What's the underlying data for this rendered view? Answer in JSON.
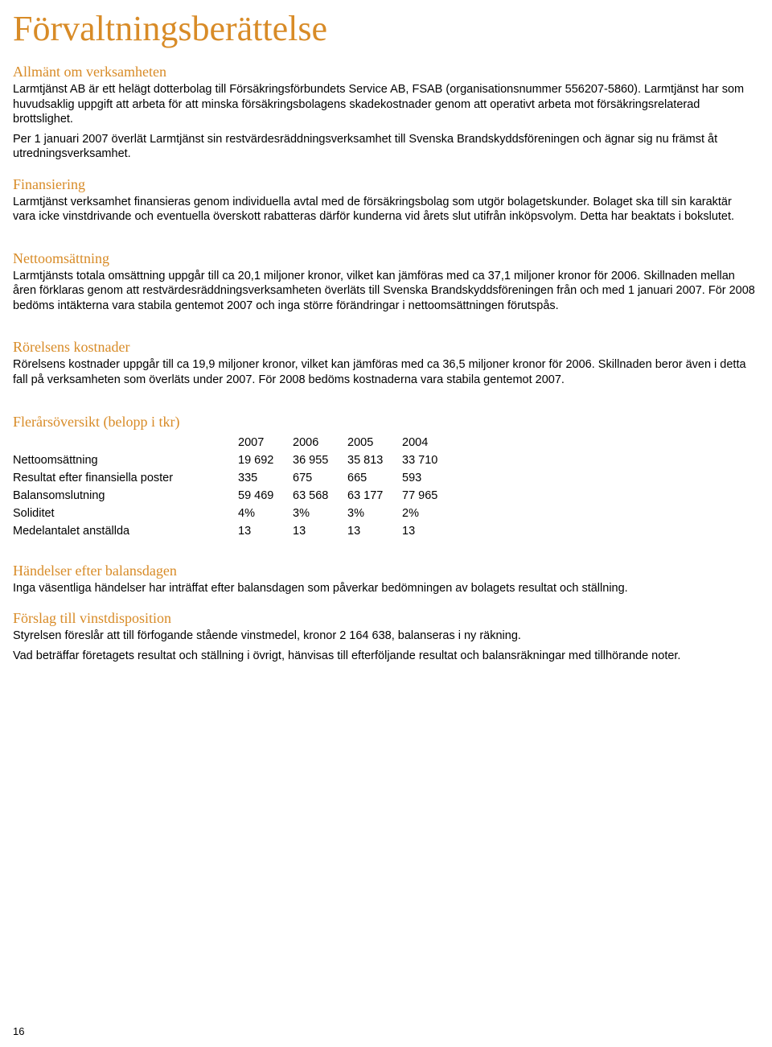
{
  "colors": {
    "accent": "#d88b27",
    "text": "#000000",
    "background": "#ffffff"
  },
  "title": "Förvaltningsberättelse",
  "sections": {
    "allmant": {
      "heading": "Allmänt om verksamheten",
      "p1": "Larmtjänst AB är ett helägt dotterbolag till Försäkringsförbundets Service AB, FSAB (organisationsnummer 556207-5860). Larmtjänst har som huvudsaklig uppgift att arbeta för att minska försäkringsbolagens skadekostnader genom att operativt arbeta mot försäkringsrelaterad brottslighet.",
      "p2": "Per 1 januari 2007 överlät Larmtjänst sin restvärdesräddningsverksamhet till Svenska Brandskyddsföreningen och ägnar sig nu främst åt utredningsverksamhet."
    },
    "finansiering": {
      "heading": "Finansiering",
      "p1": "Larmtjänst verksamhet finansieras genom individuella avtal med de försäkringsbolag som utgör bolagetskunder. Bolaget ska till sin karaktär vara icke vinstdrivande och eventuella överskott rabatteras därför kunderna vid årets slut utifrån inköpsvolym. Detta har beaktats i bokslutet."
    },
    "nettoomsattning": {
      "heading": "Nettoomsättning",
      "p1": "Larmtjänsts totala omsättning uppgår till ca 20,1 miljoner kronor, vilket kan jämföras med ca 37,1 miljoner kronor för 2006. Skillnaden mellan åren förklaras genom att restvärdesräddningsverksamheten överläts till Svenska Brandskyddsföreningen från och med 1 januari 2007. För 2008 bedöms intäkterna vara stabila gentemot 2007 och inga större förändringar i nettoomsättningen förutspås."
    },
    "rorelsens": {
      "heading": "Rörelsens kostnader",
      "p1": "Rörelsens kostnader uppgår till ca 19,9 miljoner kronor, vilket kan jämföras med ca 36,5 miljoner kronor för 2006. Skillnaden beror även i detta fall på verksamheten som överläts under 2007. För 2008 bedöms kostnaderna vara stabila gentemot 2007."
    },
    "flerars": {
      "heading": "Flerårsöversikt (belopp i tkr)",
      "table": {
        "type": "table",
        "columns": [
          "",
          "2007",
          "2006",
          "2005",
          "2004"
        ],
        "rows": [
          [
            "Nettoomsättning",
            "19 692",
            "36 955",
            "35 813",
            "33 710"
          ],
          [
            "Resultat efter finansiella poster",
            "335",
            "675",
            "665",
            "593"
          ],
          [
            "Balansomslutning",
            "59 469",
            "63 568",
            "63 177",
            "77 965"
          ],
          [
            "Soliditet",
            "4%",
            "3%",
            "3%",
            "2%"
          ],
          [
            "Medelantalet anställda",
            "13",
            "13",
            "13",
            "13"
          ]
        ]
      }
    },
    "handelser": {
      "heading": "Händelser efter balansdagen",
      "p1": "Inga väsentliga händelser har inträffat efter balansdagen som påverkar bedömningen av bolagets resultat och ställning."
    },
    "forslag": {
      "heading": "Förslag till vinstdisposition",
      "p1": "Styrelsen föreslår att till förfogande stående vinstmedel, kronor 2 164 638, balanseras i ny räkning.",
      "p2": "Vad beträffar företagets resultat och ställning i övrigt, hänvisas till efterföljande resultat och balansräkningar med tillhörande noter."
    }
  },
  "page_number": "16"
}
